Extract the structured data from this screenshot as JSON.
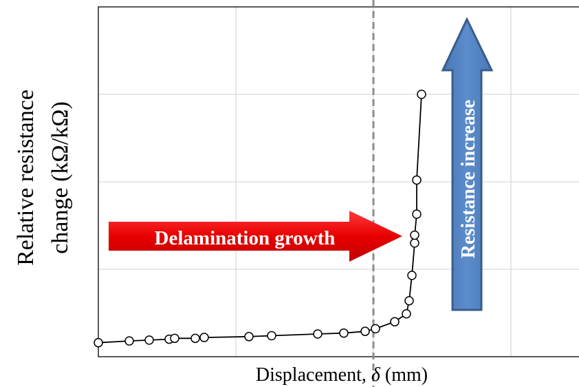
{
  "chart_data": {
    "type": "line",
    "xlabel": "Displacement, ",
    "xlabel_symbol": "δ",
    "xlabel_unit": " (mm)",
    "ylabel_line1": "Relative resistance",
    "ylabel_line2": "change (kΩ/kΩ)",
    "xlim": [
      0,
      7
    ],
    "ylim": [
      0,
      4
    ],
    "x_gridlines": [
      2,
      4,
      6
    ],
    "y_gridlines": [
      1,
      2,
      3
    ],
    "grid": true,
    "marker": "open-circle",
    "line_color": "#000000",
    "series": [
      {
        "x": [
          0.0,
          0.45,
          0.74,
          1.03,
          1.11,
          1.41,
          1.54,
          2.19,
          2.52,
          3.19,
          3.57,
          3.88,
          4.03,
          4.31,
          4.48,
          4.52,
          4.56,
          4.6,
          4.6,
          4.63,
          4.63,
          4.7
        ],
        "y": [
          0.16,
          0.18,
          0.19,
          0.2,
          0.21,
          0.21,
          0.22,
          0.23,
          0.24,
          0.26,
          0.27,
          0.29,
          0.32,
          0.4,
          0.49,
          0.64,
          0.93,
          1.3,
          1.39,
          1.63,
          2.02,
          3.0
        ]
      }
    ],
    "vertical_reference_line": {
      "x": 4.0,
      "style": "dashed",
      "color": "#8c8c8c"
    },
    "annotations": {
      "delamination_label": "Delamination growth",
      "delamination_color": "#ff0000",
      "resistance_label": "Resistance increase",
      "resistance_color": "#4f81bd",
      "resistance_outline": "#385d8a"
    }
  }
}
